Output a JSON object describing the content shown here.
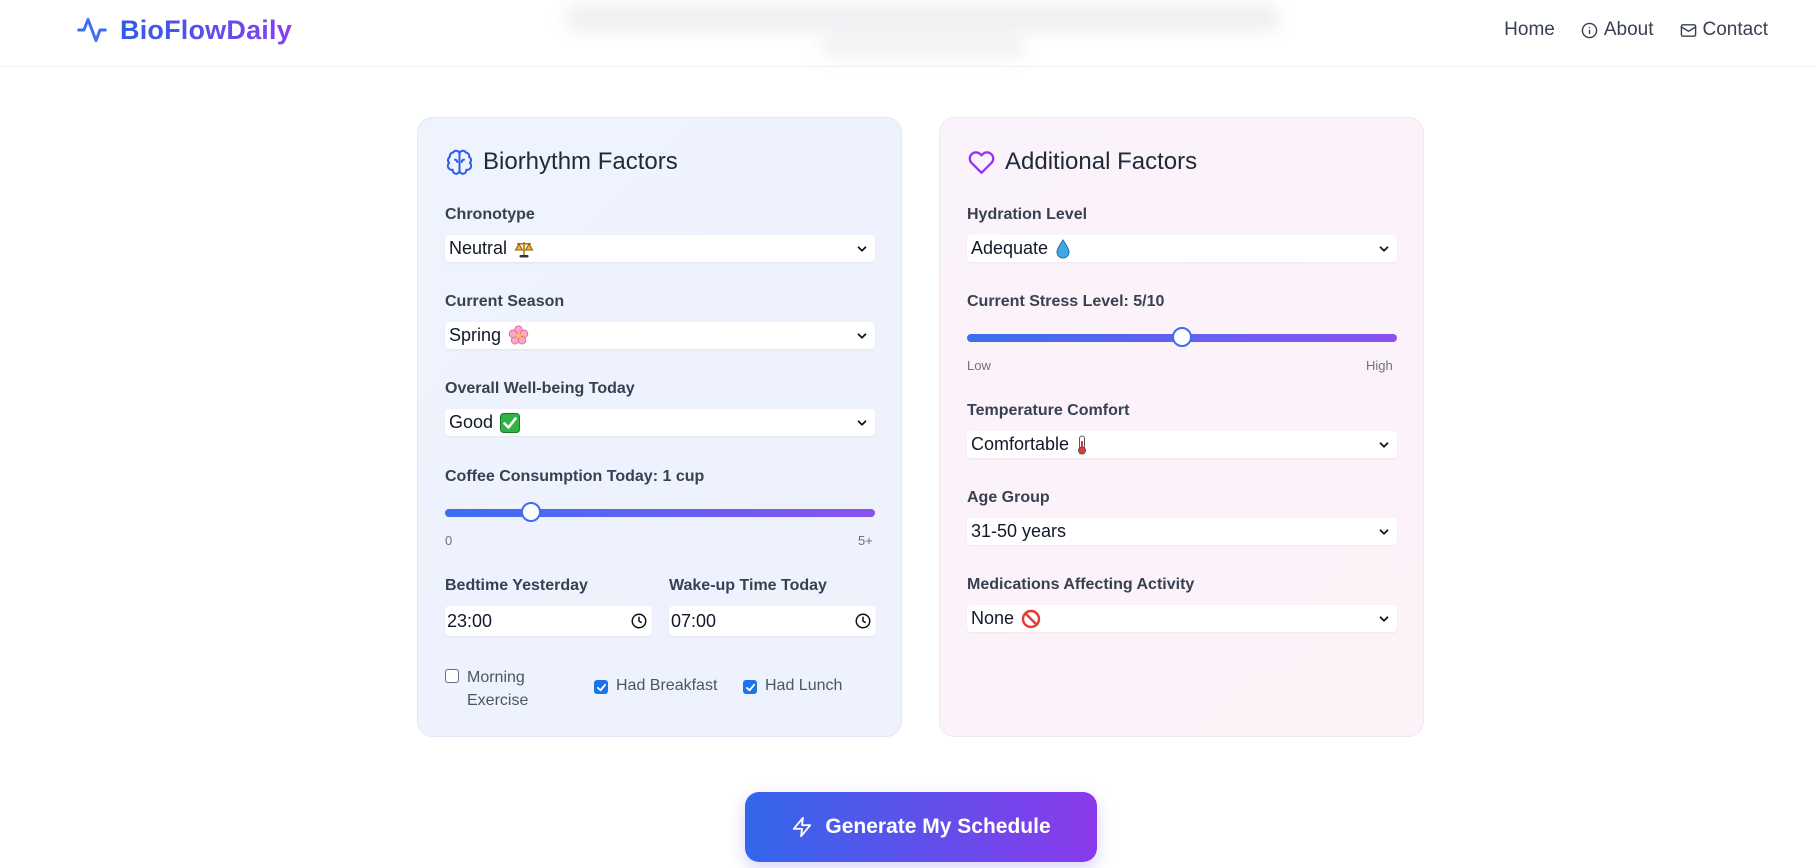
{
  "brand": {
    "name": "BioFlowDaily"
  },
  "nav": {
    "home": "Home",
    "about": "About",
    "contact": "Contact"
  },
  "biorhythm": {
    "title": "Biorhythm Factors",
    "chronotype": {
      "label": "Chronotype",
      "value": "Neutral",
      "icon": "scales-emoji"
    },
    "season": {
      "label": "Current Season",
      "value": "Spring",
      "icon": "cherry-blossom-emoji"
    },
    "wellbeing": {
      "label": "Overall Well-being Today",
      "value": "Good",
      "icon": "check-mark-emoji"
    },
    "coffee": {
      "label": "Coffee Consumption Today: 1 cup",
      "value": 1,
      "max": 5,
      "min_label": "0",
      "max_label": "5+"
    },
    "bedtime": {
      "label": "Bedtime Yesterday",
      "value": "23:00"
    },
    "wakeup": {
      "label": "Wake-up Time Today",
      "value": "07:00"
    },
    "checkboxes": [
      {
        "label_line1": "Morning",
        "label_line2": "Exercise",
        "checked": false
      },
      {
        "label": "Had Breakfast",
        "checked": true
      },
      {
        "label": "Had Lunch",
        "checked": true
      }
    ]
  },
  "additional": {
    "title": "Additional Factors",
    "hydration": {
      "label": "Hydration Level",
      "value": "Adequate",
      "icon": "droplet-emoji"
    },
    "stress": {
      "label": "Current Stress Level: 5/10",
      "value": 5,
      "max": 10,
      "low_label": "Low",
      "high_label": "High"
    },
    "temperature": {
      "label": "Temperature Comfort",
      "value": "Comfortable",
      "icon": "thermometer-emoji"
    },
    "age": {
      "label": "Age Group",
      "value": "31-50 years"
    },
    "medications": {
      "label": "Medications Affecting Activity",
      "value": "None",
      "icon": "prohibited-emoji"
    }
  },
  "cta": {
    "label": "Generate My Schedule"
  },
  "colors": {
    "primary": "#3266ea",
    "accent": "#8b3aec",
    "checkbox": "#1a73e8"
  }
}
